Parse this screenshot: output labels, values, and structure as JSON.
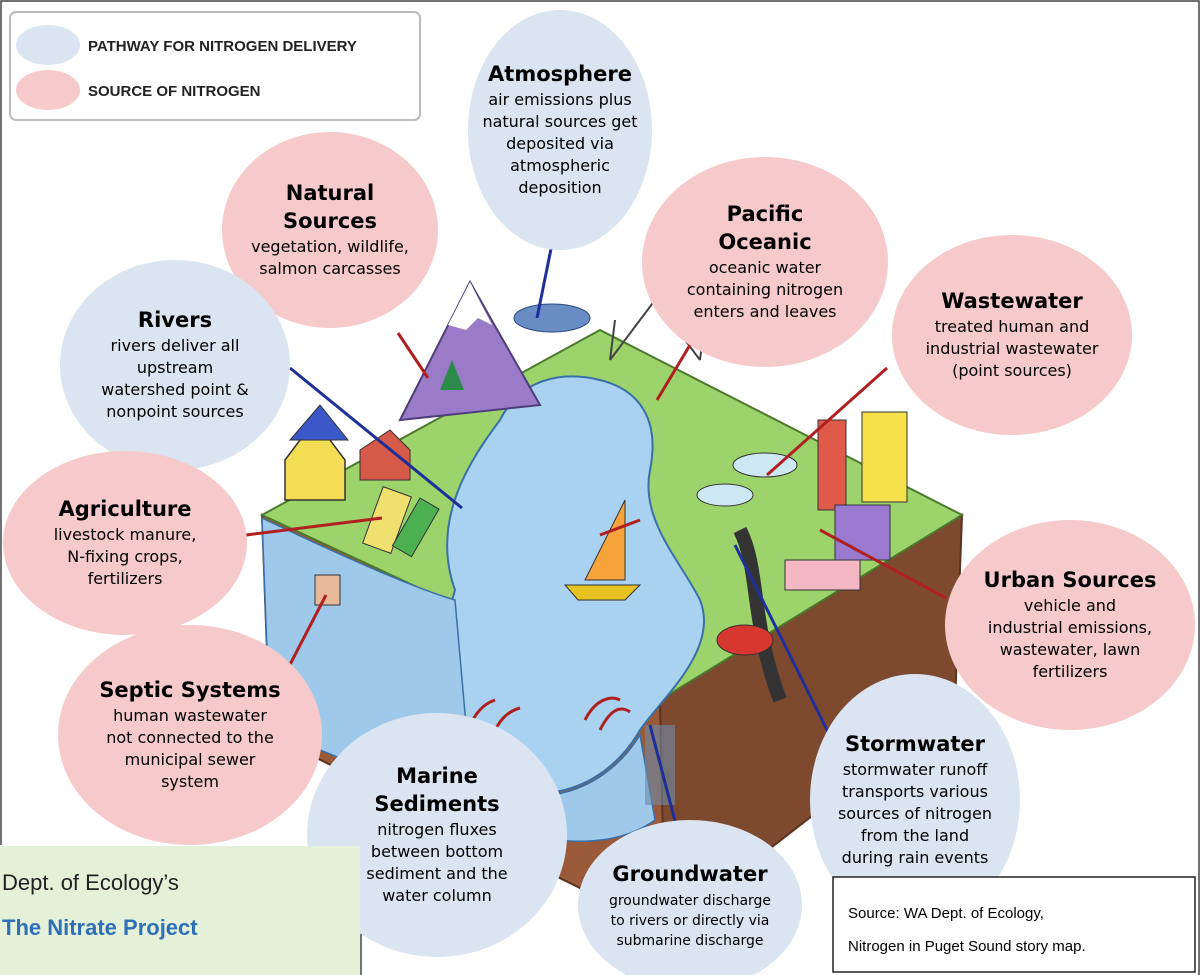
{
  "legend": {
    "items": [
      {
        "label": "PATHWAY FOR NITROGEN DELIVERY",
        "color": "#dbe5f1"
      },
      {
        "label": "SOURCE OF NITROGEN",
        "color": "#f6caca"
      }
    ]
  },
  "nodes": [
    {
      "title": [
        "Atmosphere"
      ],
      "lines": [
        "air emissions plus",
        "natural sources get",
        "deposited via",
        "atmospheric",
        "deposition"
      ],
      "color": "#dbe5f1"
    },
    {
      "title": [
        "Natural",
        "Sources"
      ],
      "lines": [
        "vegetation, wildlife,",
        "salmon carcasses"
      ],
      "color": "#f6caca"
    },
    {
      "title": [
        "Pacific",
        "Oceanic"
      ],
      "lines": [
        "oceanic water",
        "containing nitrogen",
        "enters and leaves"
      ],
      "color": "#f6caca"
    },
    {
      "title": [
        "Wastewater"
      ],
      "lines": [
        "treated human and",
        "industrial wastewater",
        "(point sources)"
      ],
      "color": "#f6caca"
    },
    {
      "title": [
        "Rivers"
      ],
      "lines": [
        "rivers deliver all",
        "upstream",
        "watershed point &",
        "nonpoint sources"
      ],
      "color": "#dbe5f1"
    },
    {
      "title": [
        "Agriculture"
      ],
      "lines": [
        "livestock manure,",
        "N-fixing crops,",
        "fertilizers"
      ],
      "color": "#f6caca"
    },
    {
      "title": [
        "Urban Sources"
      ],
      "lines": [
        "vehicle and",
        "industrial emissions,",
        "wastewater, lawn",
        "fertilizers"
      ],
      "color": "#f6caca"
    },
    {
      "title": [
        "Septic Systems"
      ],
      "lines": [
        "human wastewater",
        "not connected to the",
        "municipal sewer",
        "system"
      ],
      "color": "#f6caca"
    },
    {
      "title": [
        "Marine",
        "Sediments"
      ],
      "lines": [
        "nitrogen fluxes",
        "between bottom",
        "sediment and the",
        "water column"
      ],
      "color": "#dbe5f1"
    },
    {
      "title": [
        "Stormwater"
      ],
      "lines": [
        "stormwater runoff",
        "transports various",
        "sources of nitrogen",
        "from the land",
        "during rain events"
      ],
      "color": "#dbe5f1"
    },
    {
      "title": [
        "Groundwater"
      ],
      "lines": [
        "groundwater discharge",
        "to rivers or directly via",
        "submarine discharge"
      ],
      "color": "#dbe5f1"
    }
  ],
  "source": {
    "lines": [
      "Source: WA Dept. of Ecology,",
      "Nitrogen in Puget Sound story map."
    ]
  },
  "attribution": {
    "organization": "Dept. of Ecology’s",
    "project": "The Nitrate Project"
  }
}
